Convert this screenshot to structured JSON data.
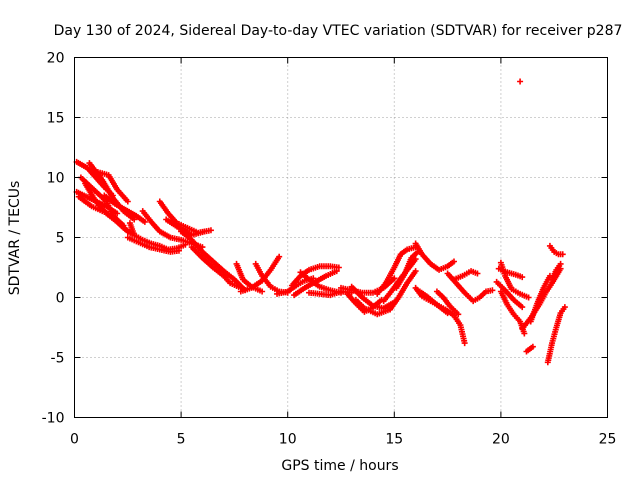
{
  "chart_data": {
    "type": "scatter",
    "title": "Day 130 of 2024, Sidereal Day-to-day VTEC variation (SDTVAR) for receiver p287",
    "xlabel": "GPS time / hours",
    "ylabel": "SDTVAR / TECUs",
    "xlim": [
      0,
      25
    ],
    "ylim": [
      -10,
      20
    ],
    "xticks": [
      0,
      5,
      10,
      15,
      20,
      25
    ],
    "xtick_labels": [
      "0",
      "5",
      "10",
      "15",
      "20",
      "25"
    ],
    "yticks": [
      -10,
      -5,
      0,
      5,
      10,
      15,
      20
    ],
    "ytick_labels": [
      "-10",
      "-5",
      "0",
      "5",
      "10",
      "15",
      "20"
    ],
    "grid": true,
    "marker": "+",
    "color": "#ff0000",
    "segments": [
      [
        [
          0.1,
          11.3
        ],
        [
          0.6,
          10.8
        ],
        [
          1.0,
          10.0
        ],
        [
          1.4,
          9.2
        ],
        [
          1.8,
          8.5
        ]
      ],
      [
        [
          0.1,
          8.8
        ],
        [
          0.8,
          8.2
        ],
        [
          1.5,
          7.6
        ],
        [
          2.0,
          7.0
        ]
      ],
      [
        [
          0.3,
          10.0
        ],
        [
          0.9,
          9.0
        ],
        [
          1.5,
          8.0
        ],
        [
          1.9,
          6.5
        ],
        [
          2.3,
          5.8
        ],
        [
          2.7,
          5.3
        ]
      ],
      [
        [
          0.7,
          11.2
        ],
        [
          1.3,
          9.8
        ],
        [
          1.8,
          8.3
        ],
        [
          2.3,
          7.2
        ],
        [
          2.8,
          6.5
        ]
      ],
      [
        [
          1.0,
          10.5
        ],
        [
          1.6,
          10.2
        ],
        [
          2.0,
          9.0
        ],
        [
          2.5,
          8.0
        ]
      ],
      [
        [
          0.5,
          9.5
        ],
        [
          1.0,
          8.0
        ],
        [
          1.5,
          7.0
        ],
        [
          2.0,
          6.3
        ],
        [
          2.5,
          5.5
        ]
      ],
      [
        [
          1.4,
          8.5
        ],
        [
          1.9,
          7.8
        ],
        [
          2.4,
          7.3
        ],
        [
          2.9,
          6.8
        ],
        [
          3.3,
          6.3
        ]
      ],
      [
        [
          0.2,
          8.4
        ],
        [
          0.8,
          7.6
        ],
        [
          1.3,
          7.2
        ],
        [
          1.8,
          6.8
        ],
        [
          2.3,
          6.0
        ]
      ],
      [
        [
          2.6,
          6.2
        ],
        [
          2.8,
          5.2
        ],
        [
          3.2,
          4.8
        ],
        [
          3.6,
          4.5
        ],
        [
          4.0,
          4.3
        ],
        [
          4.4,
          4.0
        ],
        [
          4.8,
          4.1
        ],
        [
          5.2,
          4.4
        ]
      ],
      [
        [
          2.5,
          5.0
        ],
        [
          3.0,
          4.6
        ],
        [
          3.5,
          4.2
        ],
        [
          4.0,
          4.0
        ],
        [
          4.5,
          3.8
        ],
        [
          4.9,
          3.9
        ]
      ],
      [
        [
          3.2,
          7.2
        ],
        [
          3.6,
          6.3
        ],
        [
          4.0,
          5.5
        ],
        [
          4.5,
          5.0
        ],
        [
          5.0,
          4.8
        ],
        [
          5.5,
          4.5
        ],
        [
          6.0,
          4.2
        ]
      ],
      [
        [
          4.0,
          8.0
        ],
        [
          4.4,
          7.0
        ],
        [
          4.8,
          6.2
        ],
        [
          5.3,
          5.8
        ],
        [
          5.8,
          5.4
        ],
        [
          6.4,
          5.6
        ]
      ],
      [
        [
          4.3,
          6.5
        ],
        [
          4.9,
          5.8
        ],
        [
          5.5,
          5.2
        ],
        [
          6.1,
          5.5
        ]
      ],
      [
        [
          5.0,
          5.5
        ],
        [
          5.5,
          4.8
        ],
        [
          6.0,
          3.8
        ],
        [
          6.5,
          3.0
        ],
        [
          7.0,
          2.2
        ],
        [
          7.5,
          1.5
        ],
        [
          8.0,
          0.6
        ]
      ],
      [
        [
          5.5,
          4.2
        ],
        [
          6.0,
          3.3
        ],
        [
          6.5,
          2.5
        ],
        [
          7.0,
          1.8
        ],
        [
          7.3,
          1.2
        ],
        [
          7.8,
          0.8
        ]
      ],
      [
        [
          7.6,
          2.8
        ],
        [
          7.9,
          1.5
        ],
        [
          8.3,
          0.9
        ],
        [
          8.8,
          0.5
        ]
      ],
      [
        [
          7.8,
          0.5
        ],
        [
          8.3,
          0.8
        ],
        [
          8.8,
          1.4
        ],
        [
          9.2,
          2.3
        ],
        [
          9.6,
          3.4
        ]
      ],
      [
        [
          8.5,
          2.8
        ],
        [
          8.8,
          1.8
        ],
        [
          9.2,
          0.9
        ],
        [
          9.6,
          0.5
        ],
        [
          10.0,
          0.4
        ]
      ],
      [
        [
          9.5,
          0.3
        ],
        [
          10.0,
          0.5
        ],
        [
          10.4,
          1.0
        ],
        [
          10.8,
          1.4
        ],
        [
          11.2,
          1.6
        ]
      ],
      [
        [
          10.2,
          1.0
        ],
        [
          10.6,
          1.8
        ],
        [
          11.0,
          2.3
        ],
        [
          11.5,
          2.6
        ],
        [
          12.0,
          2.6
        ],
        [
          12.4,
          2.5
        ]
      ],
      [
        [
          10.3,
          0.2
        ],
        [
          10.8,
          0.8
        ],
        [
          11.3,
          1.3
        ],
        [
          11.8,
          1.8
        ],
        [
          12.3,
          2.2
        ]
      ],
      [
        [
          10.6,
          2.1
        ],
        [
          11.0,
          1.5
        ],
        [
          11.5,
          0.9
        ],
        [
          12.0,
          0.6
        ],
        [
          12.5,
          0.4
        ]
      ],
      [
        [
          11.0,
          0.4
        ],
        [
          11.5,
          0.3
        ],
        [
          12.0,
          0.2
        ],
        [
          12.5,
          0.5
        ],
        [
          13.0,
          0.4
        ]
      ],
      [
        [
          12.5,
          0.8
        ],
        [
          13.0,
          0.6
        ],
        [
          13.5,
          0.4
        ],
        [
          14.0,
          0.4
        ],
        [
          14.5,
          0.8
        ],
        [
          15.0,
          1.6
        ]
      ],
      [
        [
          12.8,
          0.3
        ],
        [
          13.2,
          -0.5
        ],
        [
          13.6,
          -1.2
        ],
        [
          14.0,
          -0.8
        ],
        [
          14.4,
          -0.2
        ]
      ],
      [
        [
          13.0,
          0.9
        ],
        [
          13.5,
          0.0
        ],
        [
          14.0,
          -0.7
        ],
        [
          14.5,
          -0.9
        ],
        [
          15.0,
          -0.4
        ]
      ],
      [
        [
          13.2,
          -0.2
        ],
        [
          13.6,
          -0.9
        ],
        [
          14.2,
          -1.4
        ],
        [
          14.8,
          -1.0
        ]
      ],
      [
        [
          14.2,
          0.3
        ],
        [
          14.6,
          1.2
        ],
        [
          15.0,
          2.5
        ],
        [
          15.3,
          3.6
        ],
        [
          15.6,
          4.0
        ],
        [
          16.0,
          4.2
        ]
      ],
      [
        [
          14.5,
          -0.3
        ],
        [
          14.9,
          0.6
        ],
        [
          15.3,
          1.6
        ],
        [
          15.7,
          2.5
        ],
        [
          16.0,
          3.2
        ]
      ],
      [
        [
          14.8,
          -1.0
        ],
        [
          15.2,
          0.0
        ],
        [
          15.6,
          1.2
        ],
        [
          16.0,
          2.2
        ]
      ],
      [
        [
          15.1,
          0.8
        ],
        [
          15.5,
          2.0
        ],
        [
          15.8,
          3.3
        ],
        [
          16.1,
          3.8
        ]
      ],
      [
        [
          16.0,
          4.5
        ],
        [
          16.3,
          3.6
        ],
        [
          16.7,
          2.8
        ],
        [
          17.1,
          2.3
        ],
        [
          17.5,
          2.6
        ],
        [
          17.8,
          3.0
        ]
      ],
      [
        [
          16.0,
          0.8
        ],
        [
          16.3,
          0.1
        ],
        [
          16.7,
          -0.3
        ],
        [
          17.0,
          -0.6
        ],
        [
          17.5,
          -1.3
        ]
      ],
      [
        [
          16.2,
          0.5
        ],
        [
          16.6,
          0.0
        ],
        [
          17.0,
          -0.6
        ],
        [
          17.4,
          -1.0
        ],
        [
          17.8,
          -1.5
        ],
        [
          18.1,
          -2.3
        ],
        [
          18.3,
          -3.8
        ]
      ],
      [
        [
          17.0,
          0.5
        ],
        [
          17.3,
          0.0
        ],
        [
          17.6,
          -0.7
        ],
        [
          18.0,
          -1.4
        ]
      ],
      [
        [
          17.8,
          1.5
        ],
        [
          18.2,
          1.8
        ],
        [
          18.6,
          2.2
        ],
        [
          18.9,
          2.0
        ]
      ],
      [
        [
          17.5,
          2.0
        ],
        [
          17.9,
          1.2
        ],
        [
          18.3,
          0.4
        ],
        [
          18.7,
          -0.3
        ],
        [
          19.0,
          0.0
        ],
        [
          19.3,
          0.5
        ],
        [
          19.6,
          0.6
        ]
      ],
      [
        [
          20.0,
          2.9
        ],
        [
          20.2,
          1.8
        ],
        [
          20.5,
          0.7
        ],
        [
          20.9,
          0.3
        ],
        [
          21.3,
          0.0
        ]
      ],
      [
        [
          19.9,
          2.4
        ],
        [
          20.3,
          2.1
        ],
        [
          20.7,
          1.9
        ],
        [
          21.0,
          1.7
        ]
      ],
      [
        [
          20.0,
          0.5
        ],
        [
          20.3,
          -0.6
        ],
        [
          20.6,
          -1.4
        ],
        [
          20.9,
          -2.0
        ],
        [
          21.1,
          -3.0
        ]
      ],
      [
        [
          19.8,
          1.3
        ],
        [
          20.2,
          0.6
        ],
        [
          20.6,
          -0.2
        ],
        [
          21.0,
          -0.8
        ]
      ],
      [
        [
          21.0,
          -2.6
        ],
        [
          21.4,
          -1.7
        ],
        [
          21.8,
          -0.6
        ],
        [
          22.1,
          0.4
        ],
        [
          22.4,
          1.2
        ],
        [
          22.8,
          2.4
        ]
      ],
      [
        [
          21.2,
          -4.5
        ],
        [
          21.5,
          -4.1
        ]
      ],
      [
        [
          21.4,
          -2.0
        ],
        [
          21.7,
          -0.5
        ],
        [
          22.0,
          0.8
        ],
        [
          22.3,
          1.8
        ]
      ],
      [
        [
          22.2,
          -5.4
        ],
        [
          22.4,
          -3.8
        ],
        [
          22.6,
          -2.5
        ],
        [
          22.8,
          -1.3
        ],
        [
          23.0,
          -0.8
        ]
      ],
      [
        [
          22.3,
          4.3
        ],
        [
          22.5,
          3.8
        ],
        [
          22.7,
          3.6
        ],
        [
          22.9,
          3.6
        ]
      ],
      [
        [
          22.4,
          1.5
        ],
        [
          22.6,
          2.3
        ],
        [
          22.8,
          2.8
        ]
      ],
      [
        [
          20.9,
          18.0
        ]
      ]
    ]
  }
}
